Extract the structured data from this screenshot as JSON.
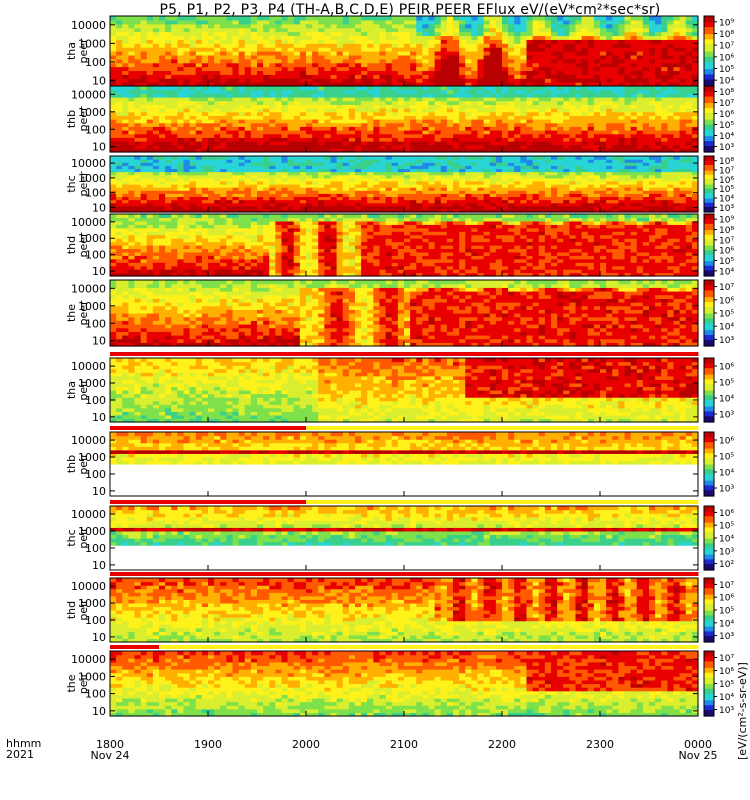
{
  "title": "P5, P1, P2, P3, P4 (TH-A,B,C,D,E) PEIR,PEER EFlux eV/(eV*cm²*sec*sr)",
  "x_axis": {
    "row_label_time": "hhmm",
    "row_label_year": "2021",
    "ticks": [
      {
        "time": "1800",
        "date": "Nov 24"
      },
      {
        "time": "1900",
        "date": ""
      },
      {
        "time": "2000",
        "date": ""
      },
      {
        "time": "2100",
        "date": ""
      },
      {
        "time": "2200",
        "date": ""
      },
      {
        "time": "2300",
        "date": ""
      },
      {
        "time": "0000",
        "date": "Nov 25"
      }
    ]
  },
  "colorbar_unit": "[eV/(cm²-s-sr-eV)]",
  "colors": {
    "colormap": [
      "#1a0a6e",
      "#1d2ad0",
      "#1f8ae8",
      "#29d4d6",
      "#39d08c",
      "#7ee04a",
      "#d8ee2e",
      "#fff21a",
      "#ffb000",
      "#ff5a00",
      "#e80000",
      "#b80000"
    ],
    "gap": "#ffffff",
    "flag_red": "#e80000",
    "flag_yellow": "#fff21a"
  },
  "chart_data": {
    "type": "heatmap",
    "x_range": [
      "2021-11-24 18:00",
      "2021-11-25 00:00"
    ],
    "y_scale": "log",
    "y_tick_labels": [
      "10",
      "100",
      "1000",
      "10000"
    ],
    "panels": [
      {
        "probe": "tha",
        "species": "peer",
        "label": "tha\npeer",
        "ylim": [
          5,
          30000
        ],
        "colorbar_ticks": [
          "10⁴",
          "10⁵",
          "10⁶",
          "10⁷",
          "10⁸",
          "10⁹"
        ],
        "has_flag_bar": false
      },
      {
        "probe": "thb",
        "species": "peer",
        "label": "thb\npeer",
        "ylim": [
          5,
          30000
        ],
        "colorbar_ticks": [
          "10³",
          "10⁴",
          "10⁵",
          "10⁶",
          "10⁷",
          "10⁸"
        ],
        "has_flag_bar": false
      },
      {
        "probe": "thc",
        "species": "peer",
        "label": "thc\npeer",
        "ylim": [
          5,
          30000
        ],
        "colorbar_ticks": [
          "10³",
          "10⁴",
          "10⁵",
          "10⁶",
          "10⁷",
          "10⁸"
        ],
        "has_flag_bar": false
      },
      {
        "probe": "thd",
        "species": "peer",
        "label": "thd\npeer",
        "ylim": [
          5,
          30000
        ],
        "colorbar_ticks": [
          "10⁴",
          "10⁵",
          "10⁶",
          "10⁷",
          "10⁸",
          "10⁹"
        ],
        "has_flag_bar": false
      },
      {
        "probe": "the",
        "species": "peer",
        "label": "the\npeer",
        "ylim": [
          5,
          30000
        ],
        "colorbar_ticks": [
          "10³",
          "10⁴",
          "10⁵",
          "10⁶",
          "10⁷"
        ],
        "has_flag_bar": false
      },
      {
        "probe": "tha",
        "species": "peir",
        "label": "tha\npeir",
        "ylim": [
          5,
          30000
        ],
        "colorbar_ticks": [
          "10³",
          "10⁴",
          "10⁵",
          "10⁶"
        ],
        "has_flag_bar": true
      },
      {
        "probe": "thb",
        "species": "peir",
        "label": "thb\npeir",
        "ylim": [
          5,
          30000
        ],
        "colorbar_ticks": [
          "10³",
          "10⁴",
          "10⁵",
          "10⁶"
        ],
        "has_flag_bar": true
      },
      {
        "probe": "thc",
        "species": "peir",
        "label": "thc\npeir",
        "ylim": [
          5,
          30000
        ],
        "colorbar_ticks": [
          "10²",
          "10³",
          "10⁴",
          "10⁵",
          "10⁶"
        ],
        "has_flag_bar": true
      },
      {
        "probe": "thd",
        "species": "peir",
        "label": "thd\npeir",
        "ylim": [
          5,
          30000
        ],
        "colorbar_ticks": [
          "10³",
          "10⁴",
          "10⁵",
          "10⁶",
          "10⁷"
        ],
        "has_flag_bar": true
      },
      {
        "probe": "the",
        "species": "peir",
        "label": "the\npeir",
        "ylim": [
          5,
          30000
        ],
        "colorbar_ticks": [
          "10³",
          "10⁴",
          "10⁵",
          "10⁶",
          "10⁷"
        ],
        "has_flag_bar": true
      }
    ]
  }
}
